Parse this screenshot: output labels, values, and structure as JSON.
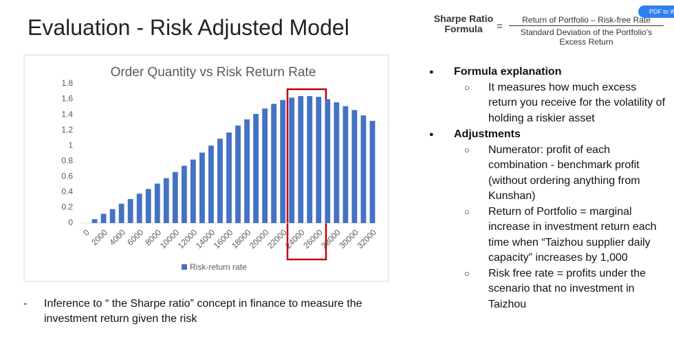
{
  "title": "Evaluation - Risk Adjusted Model",
  "formula": {
    "label": "Sharpe Ratio Formula",
    "equals": "=",
    "numerator": "Return of Portfolio – Risk-free Rate",
    "denominator": "Standard Deviation of the Portfolio’s Excess Return"
  },
  "button": "PDF to Word",
  "bullets": [
    {
      "text": "Formula explanation",
      "items": [
        "It measures how much excess return you receive for the volatility of holding a riskier asset"
      ]
    },
    {
      "text": "Adjustments",
      "items": [
        "Numerator: profit of each combination - benchmark profit (without ordering anything from Kunshan)",
        "Return of Portfolio = marginal increase in investment return each time when “Taizhou supplier daily capacity” increases by 1,000",
        "Risk free rate = profits under the scenario that no investment in Taizhou"
      ]
    }
  ],
  "note": {
    "marker": "-",
    "text": "Inference to “ the Sharpe ratio” concept in finance to measure the investment return given the risk"
  },
  "chart_data": {
    "type": "bar",
    "title": "Order Quantity vs Risk Return Rate",
    "categories": [
      "0",
      null,
      "2000",
      null,
      "4000",
      null,
      "6000",
      null,
      "8000",
      null,
      "10000",
      null,
      "12000",
      null,
      "14000",
      null,
      "16000",
      null,
      "18000",
      null,
      "20000",
      null,
      "22000",
      null,
      "24000",
      null,
      "26000",
      null,
      "28000",
      null,
      "30000",
      null,
      "32000"
    ],
    "series": [
      {
        "name": "Risk-return rate",
        "color": "#4472c4",
        "values": [
          0,
          0.05,
          0.12,
          0.18,
          0.25,
          0.31,
          0.38,
          0.44,
          0.51,
          0.58,
          0.66,
          0.74,
          0.82,
          0.91,
          1.0,
          1.09,
          1.17,
          1.26,
          1.34,
          1.41,
          1.48,
          1.54,
          1.59,
          1.62,
          1.64,
          1.64,
          1.63,
          1.6,
          1.56,
          1.51,
          1.46,
          1.39,
          1.32
        ]
      }
    ],
    "ylim": [
      0,
      1.8
    ],
    "yticks": [
      0,
      0.2,
      0.4,
      0.6,
      0.8,
      1,
      1.2,
      1.4,
      1.6,
      1.8
    ],
    "grid": false,
    "legend": "bottom"
  }
}
